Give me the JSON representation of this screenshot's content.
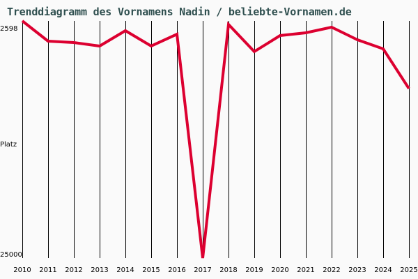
{
  "chart_data": {
    "type": "line",
    "title": "Trenddiagramm des Vornamens Nadin / beliebte-Vornamen.de",
    "xlabel": "",
    "ylabel": "Platz",
    "y_inverted": true,
    "ylim": [
      2598,
      25000
    ],
    "y_tick_labels": [
      "2598",
      "25000"
    ],
    "categories": [
      "2010",
      "2011",
      "2012",
      "2013",
      "2014",
      "2015",
      "2016",
      "2017",
      "2018",
      "2019",
      "2020",
      "2021",
      "2022",
      "2023",
      "2024",
      "2025"
    ],
    "series": [
      {
        "name": "Nadin",
        "color": "#dc0030",
        "values": [
          2598,
          4509,
          4640,
          4970,
          3520,
          4970,
          3850,
          25000,
          2927,
          5497,
          3982,
          3718,
          3191,
          4377,
          5234,
          8989
        ]
      }
    ],
    "grid": "vertical lines per year",
    "legend": "none"
  },
  "labels": {
    "title": "Trenddiagramm des Vornamens Nadin / beliebte-Vornamen.de",
    "y_top": "2598",
    "y_mid": "Platz",
    "y_bottom": "25000"
  },
  "colors": {
    "line": "#dc0030",
    "title": "#2f4f4f",
    "grid": "#000000",
    "background": "#fafafa"
  }
}
